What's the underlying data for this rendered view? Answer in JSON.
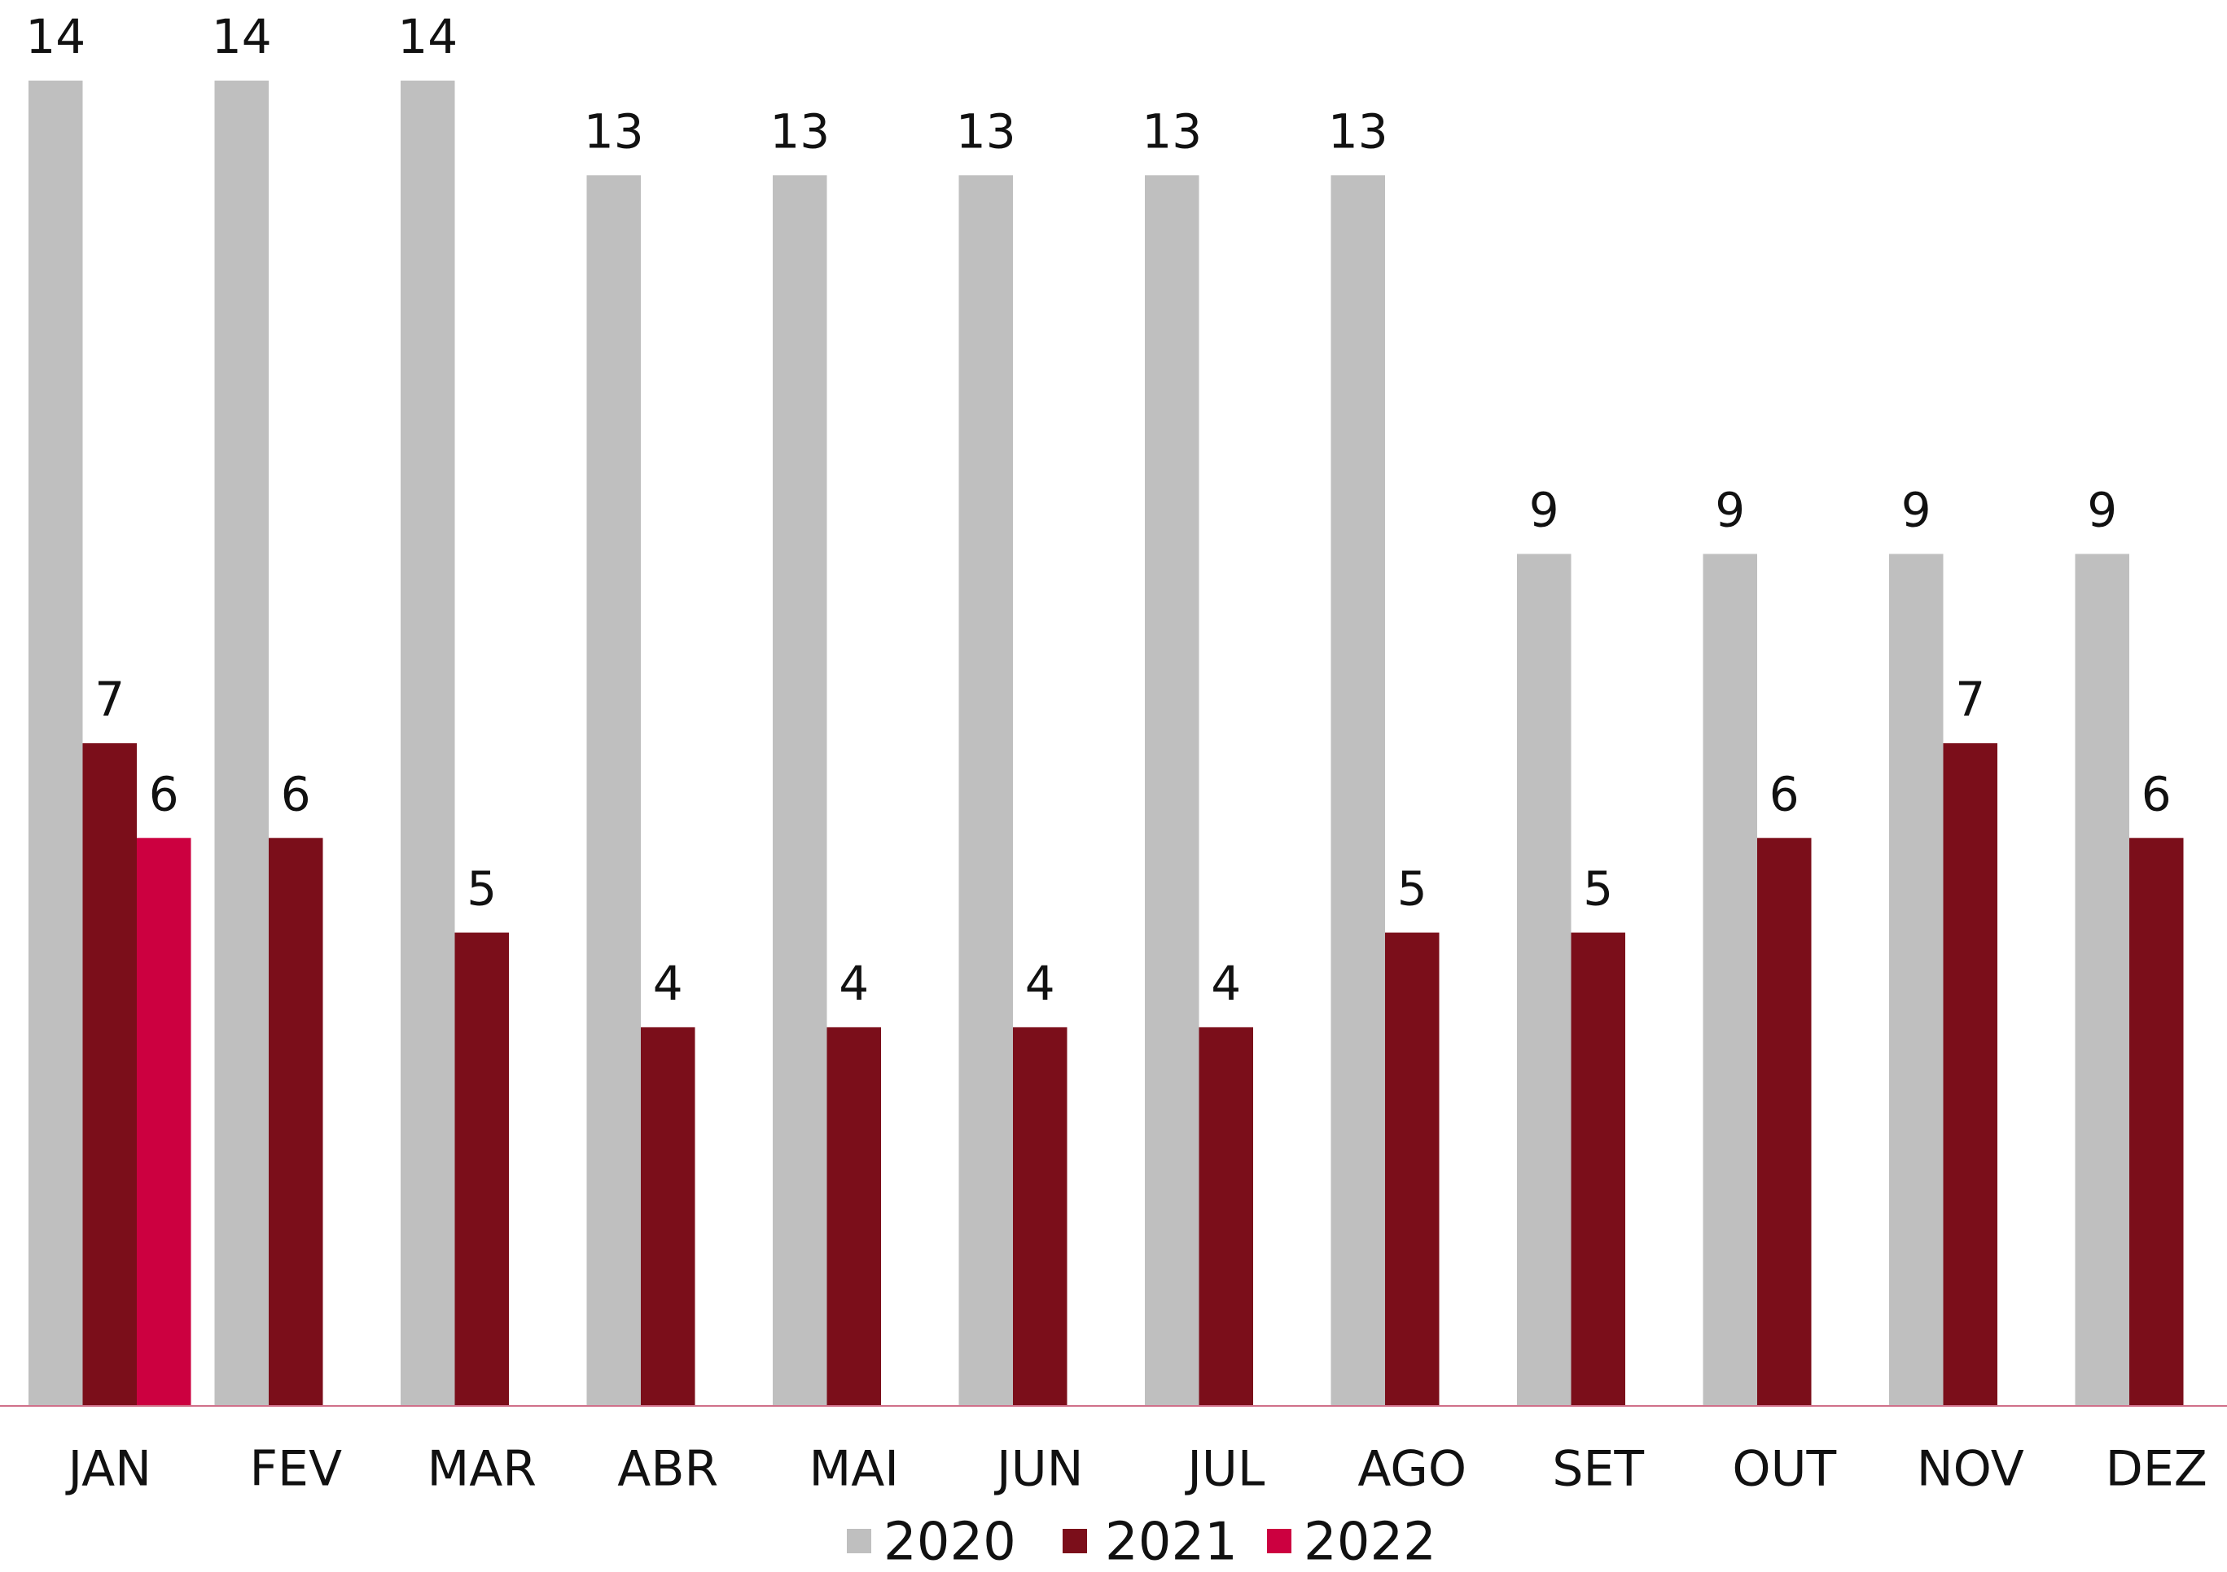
{
  "chart_data": {
    "type": "bar",
    "categories": [
      "JAN",
      "FEV",
      "MAR",
      "ABR",
      "MAI",
      "JUN",
      "JUL",
      "AGO",
      "SET",
      "OUT",
      "NOV",
      "DEZ"
    ],
    "series": [
      {
        "name": "2020",
        "color": "#bfbfbf",
        "values": [
          14,
          14,
          14,
          13,
          13,
          13,
          13,
          13,
          9,
          9,
          9,
          9
        ]
      },
      {
        "name": "2021",
        "color": "#7b0e1a",
        "values": [
          7,
          6,
          5,
          4,
          4,
          4,
          4,
          5,
          5,
          6,
          7,
          6
        ]
      },
      {
        "name": "2022",
        "color": "#cc0040",
        "values": [
          6,
          null,
          null,
          null,
          null,
          null,
          null,
          null,
          null,
          null,
          null,
          null
        ]
      }
    ],
    "ylim": [
      0,
      14
    ]
  }
}
